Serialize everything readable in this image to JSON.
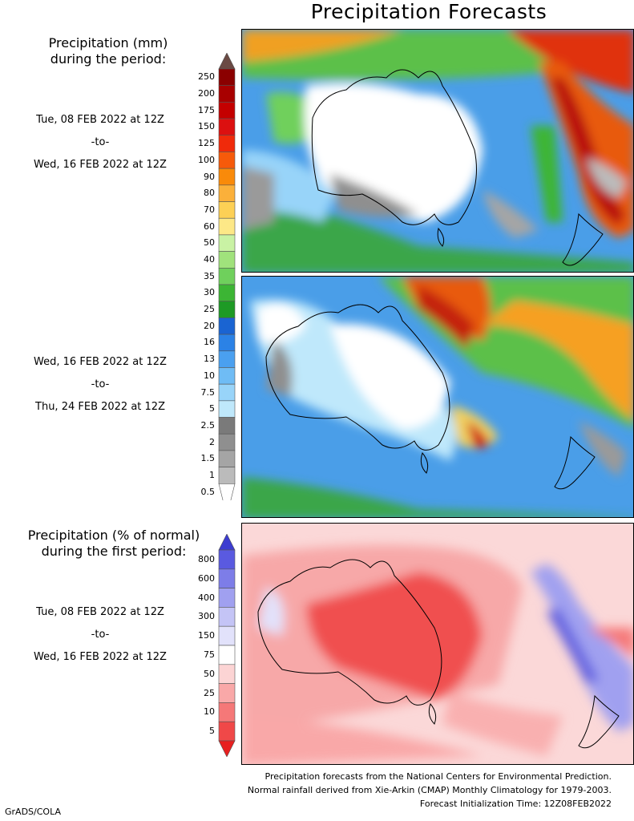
{
  "title": "Precipitation Forecasts",
  "precip_heading": [
    "Precipitation (mm)",
    "during the period:"
  ],
  "pct_heading": [
    "Precipitation (% of normal)",
    "during the first period:"
  ],
  "period1": {
    "start": "Tue, 08 FEB 2022 at 12Z",
    "to": "-to-",
    "end": "Wed, 16 FEB 2022 at 12Z"
  },
  "period2": {
    "start": "Wed, 16 FEB 2022 at 12Z",
    "to": "-to-",
    "end": "Thu, 24 FEB 2022 at 12Z"
  },
  "period3": {
    "start": "Tue, 08 FEB 2022 at 12Z",
    "to": "-to-",
    "end": "Wed, 16 FEB 2022 at 12Z"
  },
  "mm_scale": {
    "labels": [
      "250",
      "200",
      "175",
      "150",
      "125",
      "100",
      "90",
      "80",
      "70",
      "60",
      "50",
      "40",
      "35",
      "30",
      "25",
      "20",
      "16",
      "13",
      "10",
      "7.5",
      "5",
      "2.5",
      "2",
      "1.5",
      "1",
      "0.5"
    ],
    "colors": [
      "#8b0000",
      "#a80000",
      "#c40000",
      "#dc1010",
      "#f02a0a",
      "#f65a0a",
      "#f98a0a",
      "#fbb03a",
      "#fdd055",
      "#fde887",
      "#c9f2a4",
      "#a0e27c",
      "#6fd05c",
      "#3cb534",
      "#1e9a25",
      "#1a64d2",
      "#2b82e6",
      "#4aa0f0",
      "#6fbcf5",
      "#98d4f9",
      "#bfe8fb",
      "#7a7a7a",
      "#8f8f8f",
      "#a5a5a5",
      "#bbbbbb",
      "#ffffff"
    ],
    "top_color": "#6b4a44"
  },
  "pct_scale": {
    "labels": [
      "800",
      "600",
      "400",
      "300",
      "150",
      "75",
      "50",
      "25",
      "10",
      "5"
    ],
    "colors": [
      "#5a5ae0",
      "#7d7de8",
      "#a0a0f0",
      "#c4c4f6",
      "#e2e2fb",
      "#ffffff",
      "#fcd4d4",
      "#f9a8a8",
      "#f57878",
      "#f04848"
    ],
    "top_color": "#3c3cd0",
    "bottom_color": "#e82020"
  },
  "footer": [
    "Precipitation forecasts from the National Centers for Environmental Prediction.",
    "Normal rainfall derived from Xie-Arkin (CMAP) Monthly Climatology for 1979-2003.",
    "Forecast Initialization Time: 12Z08FEB2022"
  ],
  "credit": "GrADS/COLA"
}
